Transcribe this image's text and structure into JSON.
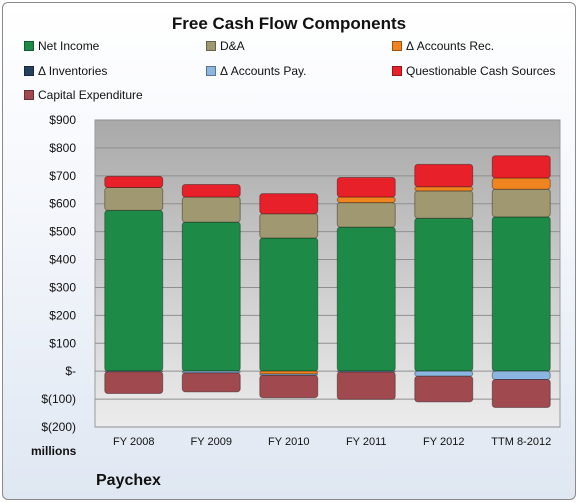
{
  "chart_data": {
    "type": "bar",
    "stacked": true,
    "title": "Free Cash Flow Components",
    "ylabel": "millions",
    "ylim": [
      -200,
      900
    ],
    "ytick_labels": [
      "$900",
      "$800",
      "$700",
      "$600",
      "$500",
      "$400",
      "$300",
      "$200",
      "$100",
      "$-",
      "$(100)",
      "$(200)"
    ],
    "categories": [
      "FY 2008",
      "FY 2009",
      "FY 2010",
      "FY 2011",
      "FY 2012",
      "TTM 8-2012"
    ],
    "legend_position": "top",
    "series": [
      {
        "name": "Net Income",
        "color": "#1e8a48",
        "values": [
          576,
          534,
          477,
          516,
          548,
          553
        ]
      },
      {
        "name": "D&A",
        "color": "#a09870",
        "values": [
          82,
          90,
          87,
          88,
          98,
          99
        ]
      },
      {
        "name": "Δ Accounts Rec.",
        "color": "#ef8420",
        "values": [
          0,
          0,
          -10,
          20,
          15,
          40
        ]
      },
      {
        "name": "Δ Inventories",
        "color": "#24415f",
        "values": [
          0,
          0,
          0,
          0,
          0,
          0
        ]
      },
      {
        "name": "Δ Accounts Pay.",
        "color": "#8bb6e0",
        "values": [
          -2,
          -6,
          -5,
          -3,
          -18,
          -30
        ]
      },
      {
        "name": "Questionable Cash Sources",
        "color": "#e8202a",
        "values": [
          40,
          45,
          72,
          70,
          80,
          80
        ]
      },
      {
        "name": "Capital Expenditure",
        "color": "#a04a50",
        "values": [
          -78,
          -68,
          -80,
          -98,
          -92,
          -100
        ]
      }
    ]
  },
  "footer": {
    "company": "Paychex",
    "units": "millions"
  }
}
